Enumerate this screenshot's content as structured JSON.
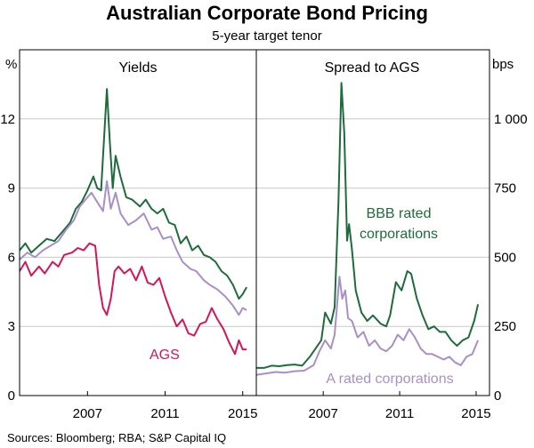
{
  "title": "Australian Corporate Bond Pricing",
  "subtitle": "5-year target tenor",
  "source": "Sources:   Bloomberg; RBA; S&P Capital IQ",
  "colors": {
    "bbb": "#1e6b3c",
    "a": "#a98fc8",
    "ags": "#d6145a",
    "frame": "#000000",
    "grid": "#c8c8c8"
  },
  "chart_data": [
    {
      "type": "line",
      "title": "Yields",
      "unit_label": "%",
      "ylim": [
        0,
        15
      ],
      "yticks": [
        0,
        3,
        6,
        9,
        12
      ],
      "xlim": [
        2004.0,
        2016.2
      ],
      "xticks": [
        {
          "label": "2007",
          "x": 2007.5
        },
        {
          "label": "2011",
          "x": 2011.5
        },
        {
          "label": "2015",
          "x": 2015.5
        }
      ],
      "series": [
        {
          "name": "BBB rated corporations",
          "color_key": "bbb",
          "points": [
            [
              2004.0,
              6.3
            ],
            [
              2004.3,
              6.6
            ],
            [
              2004.6,
              6.2
            ],
            [
              2005.0,
              6.5
            ],
            [
              2005.4,
              6.8
            ],
            [
              2005.8,
              6.7
            ],
            [
              2006.2,
              7.1
            ],
            [
              2006.6,
              7.5
            ],
            [
              2006.9,
              8.1
            ],
            [
              2007.2,
              8.4
            ],
            [
              2007.5,
              8.9
            ],
            [
              2007.8,
              9.5
            ],
            [
              2008.0,
              9.0
            ],
            [
              2008.2,
              8.9
            ],
            [
              2008.5,
              13.3
            ],
            [
              2008.65,
              11.0
            ],
            [
              2008.8,
              9.0
            ],
            [
              2008.95,
              10.4
            ],
            [
              2009.2,
              9.5
            ],
            [
              2009.5,
              8.6
            ],
            [
              2009.8,
              8.5
            ],
            [
              2010.2,
              8.2
            ],
            [
              2010.5,
              8.5
            ],
            [
              2010.8,
              8.1
            ],
            [
              2011.1,
              7.9
            ],
            [
              2011.4,
              8.1
            ],
            [
              2011.7,
              7.5
            ],
            [
              2012.0,
              7.4
            ],
            [
              2012.3,
              6.6
            ],
            [
              2012.6,
              6.9
            ],
            [
              2012.9,
              6.3
            ],
            [
              2013.2,
              6.5
            ],
            [
              2013.5,
              6.1
            ],
            [
              2013.8,
              6.0
            ],
            [
              2014.1,
              5.8
            ],
            [
              2014.4,
              5.4
            ],
            [
              2014.7,
              5.2
            ],
            [
              2015.0,
              4.8
            ],
            [
              2015.3,
              4.2
            ],
            [
              2015.5,
              4.4
            ],
            [
              2015.7,
              4.7
            ]
          ]
        },
        {
          "name": "A rated corporations",
          "color_key": "a",
          "points": [
            [
              2004.0,
              5.9
            ],
            [
              2004.4,
              6.2
            ],
            [
              2004.8,
              6.0
            ],
            [
              2005.2,
              6.3
            ],
            [
              2005.6,
              6.5
            ],
            [
              2006.0,
              6.7
            ],
            [
              2006.4,
              7.2
            ],
            [
              2006.8,
              7.6
            ],
            [
              2007.1,
              8.2
            ],
            [
              2007.4,
              8.5
            ],
            [
              2007.7,
              8.8
            ],
            [
              2008.0,
              8.4
            ],
            [
              2008.3,
              8.0
            ],
            [
              2008.5,
              9.3
            ],
            [
              2008.7,
              8.1
            ],
            [
              2008.95,
              8.8
            ],
            [
              2009.2,
              7.9
            ],
            [
              2009.6,
              7.4
            ],
            [
              2010.0,
              7.6
            ],
            [
              2010.4,
              7.9
            ],
            [
              2010.8,
              7.2
            ],
            [
              2011.1,
              7.3
            ],
            [
              2011.4,
              6.8
            ],
            [
              2011.8,
              6.9
            ],
            [
              2012.1,
              6.3
            ],
            [
              2012.4,
              5.8
            ],
            [
              2012.8,
              5.5
            ],
            [
              2013.1,
              5.4
            ],
            [
              2013.5,
              5.0
            ],
            [
              2013.8,
              4.8
            ],
            [
              2014.2,
              4.6
            ],
            [
              2014.6,
              4.3
            ],
            [
              2015.0,
              3.9
            ],
            [
              2015.3,
              3.5
            ],
            [
              2015.5,
              3.8
            ],
            [
              2015.7,
              3.7
            ]
          ]
        },
        {
          "name": "AGS",
          "color_key": "ags",
          "points": [
            [
              2004.0,
              5.4
            ],
            [
              2004.3,
              5.8
            ],
            [
              2004.6,
              5.2
            ],
            [
              2005.0,
              5.6
            ],
            [
              2005.3,
              5.3
            ],
            [
              2005.7,
              5.8
            ],
            [
              2006.0,
              5.6
            ],
            [
              2006.3,
              6.1
            ],
            [
              2006.7,
              6.2
            ],
            [
              2007.0,
              6.4
            ],
            [
              2007.3,
              6.3
            ],
            [
              2007.6,
              6.6
            ],
            [
              2007.9,
              6.5
            ],
            [
              2008.1,
              4.8
            ],
            [
              2008.3,
              3.8
            ],
            [
              2008.5,
              3.5
            ],
            [
              2008.7,
              4.2
            ],
            [
              2008.9,
              5.4
            ],
            [
              2009.1,
              5.6
            ],
            [
              2009.4,
              5.3
            ],
            [
              2009.7,
              5.5
            ],
            [
              2010.0,
              5.0
            ],
            [
              2010.3,
              5.6
            ],
            [
              2010.6,
              4.9
            ],
            [
              2010.9,
              4.8
            ],
            [
              2011.2,
              5.1
            ],
            [
              2011.5,
              4.3
            ],
            [
              2011.8,
              3.6
            ],
            [
              2012.1,
              3.0
            ],
            [
              2012.4,
              3.3
            ],
            [
              2012.7,
              2.7
            ],
            [
              2013.0,
              2.6
            ],
            [
              2013.3,
              3.1
            ],
            [
              2013.6,
              3.2
            ],
            [
              2013.9,
              3.8
            ],
            [
              2014.2,
              3.3
            ],
            [
              2014.5,
              2.9
            ],
            [
              2014.8,
              2.3
            ],
            [
              2015.1,
              1.8
            ],
            [
              2015.3,
              2.4
            ],
            [
              2015.5,
              2.0
            ],
            [
              2015.7,
              2.0
            ]
          ]
        }
      ]
    },
    {
      "type": "line",
      "title": "Spread to AGS",
      "unit_label": "bps",
      "ylim": [
        0,
        1250
      ],
      "yticks": [
        0,
        250,
        500,
        750,
        1000
      ],
      "ytick_labels": [
        "0",
        "250",
        "500",
        "750",
        "1 000"
      ],
      "xlim": [
        2004.0,
        2016.2
      ],
      "xticks": [
        {
          "label": "2007",
          "x": 2007.5
        },
        {
          "label": "2011",
          "x": 2011.5
        },
        {
          "label": "2015",
          "x": 2015.5
        }
      ],
      "series": [
        {
          "name": "BBB rated corporations",
          "color_key": "bbb",
          "points": [
            [
              2004.0,
              100
            ],
            [
              2004.4,
              100
            ],
            [
              2004.8,
              108
            ],
            [
              2005.2,
              106
            ],
            [
              2005.6,
              110
            ],
            [
              2006.0,
              112
            ],
            [
              2006.4,
              108
            ],
            [
              2006.8,
              140
            ],
            [
              2007.1,
              170
            ],
            [
              2007.4,
              200
            ],
            [
              2007.6,
              300
            ],
            [
              2007.9,
              260
            ],
            [
              2008.1,
              320
            ],
            [
              2008.3,
              700
            ],
            [
              2008.45,
              1130
            ],
            [
              2008.6,
              950
            ],
            [
              2008.75,
              560
            ],
            [
              2008.85,
              620
            ],
            [
              2009.0,
              530
            ],
            [
              2009.2,
              380
            ],
            [
              2009.5,
              300
            ],
            [
              2009.8,
              270
            ],
            [
              2010.1,
              290
            ],
            [
              2010.5,
              260
            ],
            [
              2010.8,
              250
            ],
            [
              2011.0,
              290
            ],
            [
              2011.3,
              410
            ],
            [
              2011.6,
              380
            ],
            [
              2011.9,
              450
            ],
            [
              2012.1,
              440
            ],
            [
              2012.4,
              350
            ],
            [
              2012.7,
              290
            ],
            [
              2013.0,
              240
            ],
            [
              2013.3,
              250
            ],
            [
              2013.6,
              230
            ],
            [
              2013.9,
              230
            ],
            [
              2014.2,
              200
            ],
            [
              2014.5,
              180
            ],
            [
              2014.8,
              200
            ],
            [
              2015.1,
              210
            ],
            [
              2015.4,
              270
            ],
            [
              2015.6,
              330
            ]
          ]
        },
        {
          "name": "A rated corporations",
          "color_key": "a",
          "points": [
            [
              2004.0,
              75
            ],
            [
              2004.5,
              80
            ],
            [
              2005.0,
              85
            ],
            [
              2005.5,
              83
            ],
            [
              2006.0,
              88
            ],
            [
              2006.5,
              90
            ],
            [
              2007.0,
              110
            ],
            [
              2007.3,
              160
            ],
            [
              2007.6,
              200
            ],
            [
              2007.9,
              170
            ],
            [
              2008.1,
              220
            ],
            [
              2008.35,
              430
            ],
            [
              2008.5,
              350
            ],
            [
              2008.65,
              380
            ],
            [
              2008.8,
              280
            ],
            [
              2009.0,
              270
            ],
            [
              2009.3,
              210
            ],
            [
              2009.6,
              230
            ],
            [
              2009.9,
              180
            ],
            [
              2010.2,
              200
            ],
            [
              2010.5,
              170
            ],
            [
              2010.8,
              160
            ],
            [
              2011.1,
              180
            ],
            [
              2011.4,
              220
            ],
            [
              2011.7,
              200
            ],
            [
              2012.0,
              240
            ],
            [
              2012.3,
              210
            ],
            [
              2012.6,
              170
            ],
            [
              2012.9,
              150
            ],
            [
              2013.2,
              150
            ],
            [
              2013.5,
              140
            ],
            [
              2013.8,
              130
            ],
            [
              2014.1,
              140
            ],
            [
              2014.4,
              120
            ],
            [
              2014.7,
              110
            ],
            [
              2015.0,
              140
            ],
            [
              2015.3,
              150
            ],
            [
              2015.6,
              200
            ]
          ]
        }
      ]
    }
  ],
  "labels": {
    "bbb_line1": "BBB rated",
    "bbb_line2": "corporations",
    "a_label": "A rated corporations",
    "ags_label": "AGS"
  }
}
